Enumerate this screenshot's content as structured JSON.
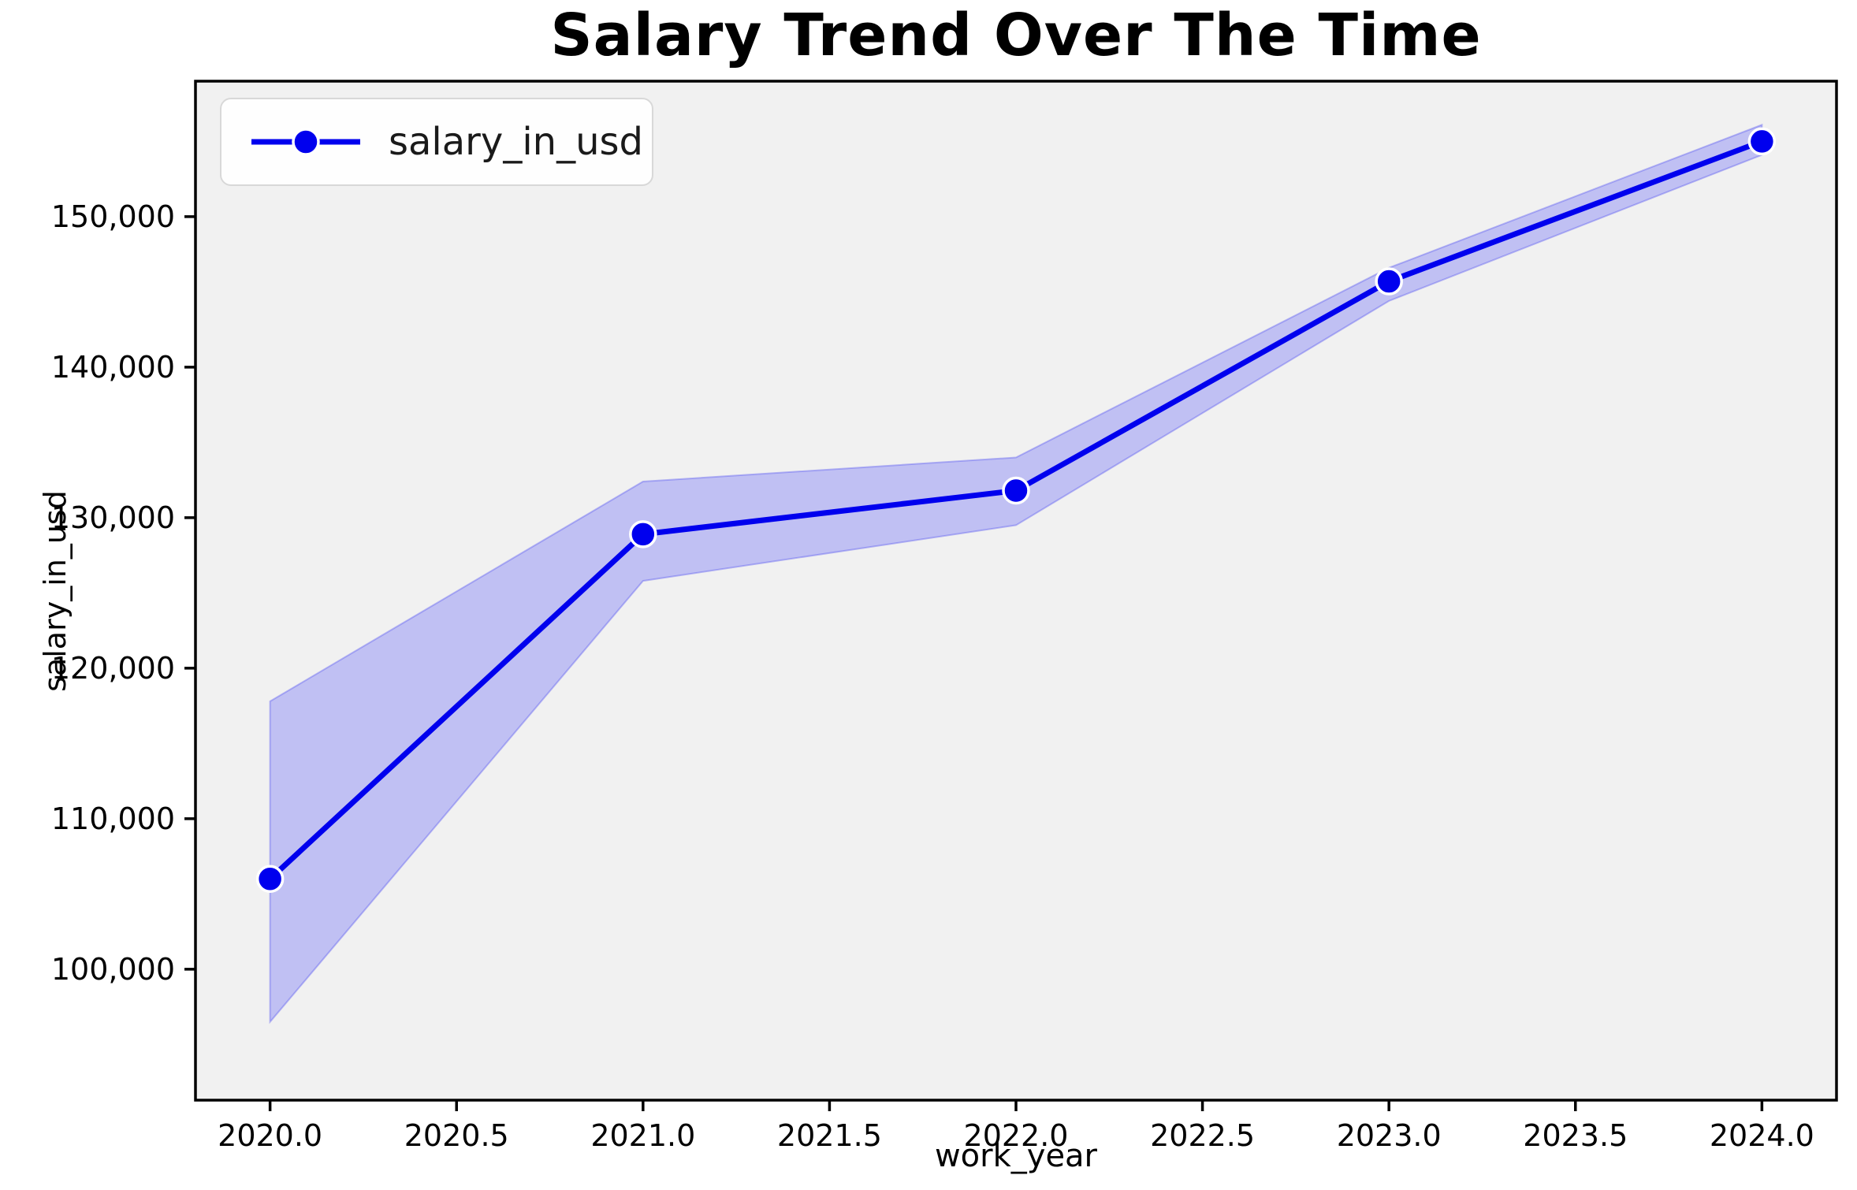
{
  "chart_data": {
    "type": "line",
    "title": "Salary Trend Over The Time",
    "xlabel": "work_year",
    "ylabel": "salary_in_usd",
    "legend": {
      "label": "salary_in_usd",
      "position": "upper-left"
    },
    "x": [
      2020,
      2021,
      2022,
      2023,
      2024
    ],
    "series": [
      {
        "name": "salary_in_usd",
        "values": [
          106000,
          128900,
          131800,
          145700,
          155000
        ],
        "ci_lower": [
          96500,
          125800,
          129500,
          144400,
          154100
        ],
        "ci_upper": [
          117800,
          132400,
          134000,
          146600,
          156100
        ]
      }
    ],
    "xlim": [
      2019.8,
      2024.2
    ],
    "ylim": [
      91300,
      159000
    ],
    "xticks": [
      {
        "v": 2020.0,
        "label": "2020.0"
      },
      {
        "v": 2020.5,
        "label": "2020.5"
      },
      {
        "v": 2021.0,
        "label": "2021.0"
      },
      {
        "v": 2021.5,
        "label": "2021.5"
      },
      {
        "v": 2022.0,
        "label": "2022.0"
      },
      {
        "v": 2022.5,
        "label": "2022.5"
      },
      {
        "v": 2023.0,
        "label": "2023.0"
      },
      {
        "v": 2023.5,
        "label": "2023.5"
      },
      {
        "v": 2024.0,
        "label": "2024.0"
      }
    ],
    "yticks": [
      {
        "v": 100000,
        "label": "100,000"
      },
      {
        "v": 110000,
        "label": "110,000"
      },
      {
        "v": 120000,
        "label": "120,000"
      },
      {
        "v": 130000,
        "label": "130,000"
      },
      {
        "v": 140000,
        "label": "140,000"
      },
      {
        "v": 150000,
        "label": "150,000"
      }
    ],
    "grid": false,
    "colors": {
      "line": "#0000ee",
      "marker": "#0000ee",
      "marker_edge": "#ffffff",
      "band": "rgba(0,0,255,0.2)",
      "band_edge": "rgba(70,70,240,0.35)",
      "plot_background": "#f1f1f1",
      "spine": "#000000",
      "text": "#000000"
    }
  }
}
